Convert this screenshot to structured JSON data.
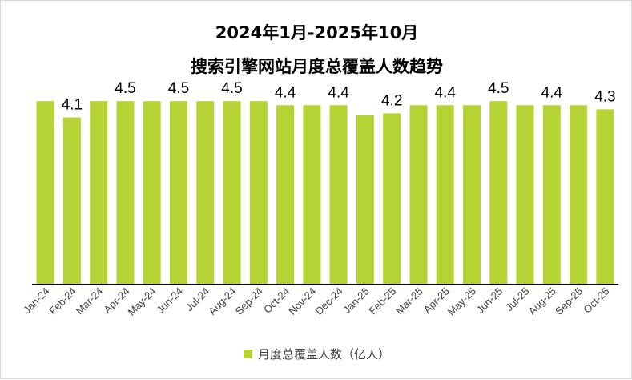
{
  "colors": {
    "bar": "#b5d334",
    "axis": "#000000",
    "text": "#000000",
    "tick": "#404040"
  },
  "chart_data": {
    "type": "bar",
    "title": "2024年1月-2025年10月",
    "subtitle": "搜索引擎网站月度总覆盖人数趋势",
    "categories": [
      "Jan-24",
      "Feb-24",
      "Mar-24",
      "Apr-24",
      "May-24",
      "Jun-24",
      "Jul-24",
      "Aug-24",
      "Sep-24",
      "Oct-24",
      "Nov-24",
      "Dec-24",
      "Jan-25",
      "Feb-25",
      "Mar-25",
      "Apr-25",
      "May-25",
      "Jun-25",
      "Jul-25",
      "Aug-25",
      "Sep-25",
      "Oct-25"
    ],
    "series": [
      {
        "name": "月度总覆盖人数（亿人）",
        "values": [
          4.5,
          4.1,
          4.5,
          4.5,
          4.5,
          4.5,
          4.5,
          4.5,
          4.5,
          4.4,
          4.4,
          4.4,
          4.15,
          4.2,
          4.4,
          4.4,
          4.4,
          4.5,
          4.4,
          4.4,
          4.4,
          4.3
        ]
      }
    ],
    "data_labels": {
      "Feb-24": "4.1",
      "Apr-24": "4.5",
      "Jun-24": "4.5",
      "Aug-24": "4.5",
      "Oct-24": "4.4",
      "Dec-24": "4.4",
      "Feb-25": "4.2",
      "Apr-25": "4.4",
      "Jun-25": "4.5",
      "Aug-25": "4.4",
      "Oct-25": "4.3"
    },
    "ylim": [
      0,
      4.9
    ],
    "grid": false,
    "legend": "bottom"
  }
}
